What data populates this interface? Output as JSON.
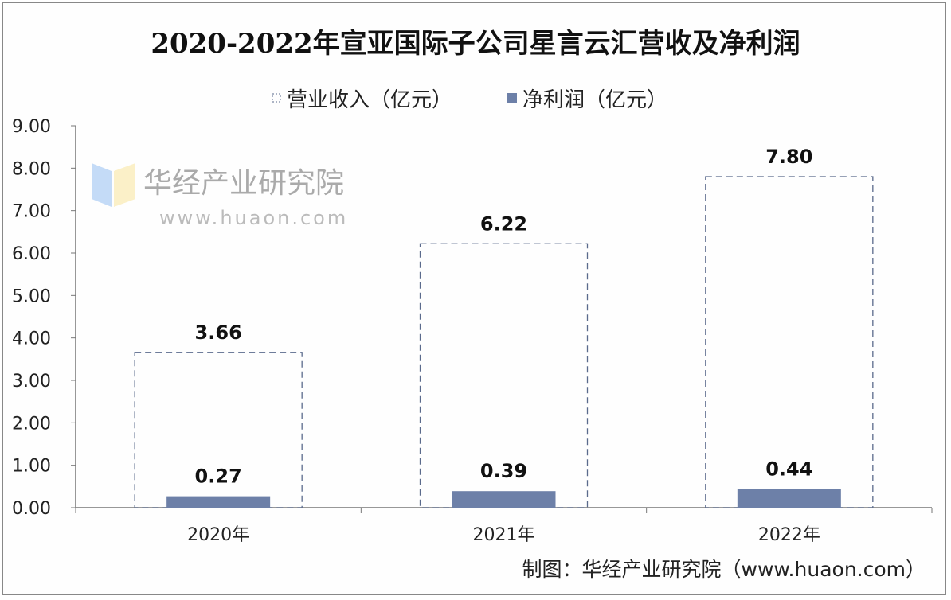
{
  "chart_data": {
    "type": "bar",
    "title": "2020-2022年宣亚国际子公司星言云汇营收及净利润",
    "categories": [
      "2020年",
      "2021年",
      "2022年"
    ],
    "series": [
      {
        "name": "营业收入（亿元）",
        "values": [
          3.66,
          6.22,
          7.8
        ],
        "labels": [
          "3.66",
          "6.22",
          "7.80"
        ],
        "style": "dashed-outline",
        "color": "#5a6a8c"
      },
      {
        "name": "净利润（亿元）",
        "values": [
          0.27,
          0.39,
          0.44
        ],
        "labels": [
          "0.27",
          "0.39",
          "0.44"
        ],
        "color": "#6d80a8"
      }
    ],
    "ylim": [
      0,
      9
    ],
    "yticks": [
      "0.00",
      "1.00",
      "2.00",
      "3.00",
      "4.00",
      "5.00",
      "6.00",
      "7.00",
      "8.00",
      "9.00"
    ],
    "legend": "top-center",
    "grid": false
  },
  "footer": {
    "source": "制图：华经产业研究院（www.huaon.com）"
  },
  "watermark": {
    "text": "华经产业研究院",
    "sub": "www.huaon.com"
  }
}
